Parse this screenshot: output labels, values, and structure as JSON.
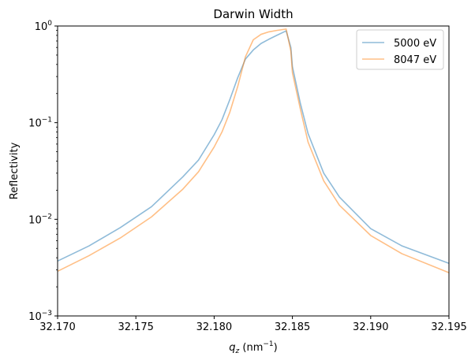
{
  "chart_data": {
    "type": "line",
    "title": "Darwin Width",
    "xlabel": "q_z (nm⁻¹)",
    "xlabel_parts": {
      "var": "q",
      "sub": "z",
      "unit_open": " (nm",
      "unit_sup": "−1",
      "unit_close": ")"
    },
    "ylabel": "Reflectivity",
    "xlim": [
      32.17,
      32.195
    ],
    "ylim": [
      0.001,
      1
    ],
    "yscale": "log",
    "grid": false,
    "legend_position": "top-right",
    "x_ticks": [
      "32.170",
      "32.175",
      "32.180",
      "32.185",
      "32.190",
      "32.195"
    ],
    "x_tick_values": [
      32.17,
      32.175,
      32.18,
      32.185,
      32.19,
      32.195
    ],
    "y_ticks": [
      {
        "value": 0.001,
        "base": "10",
        "exp": "−3"
      },
      {
        "value": 0.01,
        "base": "10",
        "exp": "−2"
      },
      {
        "value": 0.1,
        "base": "10",
        "exp": "−1"
      },
      {
        "value": 1,
        "base": "10",
        "exp": "0"
      }
    ],
    "series": [
      {
        "name": "5000 eV",
        "color": "#1f77b4",
        "opacity": 0.5,
        "x": [
          32.17,
          32.172,
          32.174,
          32.176,
          32.178,
          32.179,
          32.18,
          32.1805,
          32.181,
          32.1815,
          32.182,
          32.1825,
          32.183,
          32.1835,
          32.184,
          32.1846,
          32.1849,
          32.185,
          32.1855,
          32.186,
          32.187,
          32.188,
          32.19,
          32.192,
          32.195
        ],
        "y": [
          0.0037,
          0.0053,
          0.0082,
          0.0135,
          0.0275,
          0.041,
          0.075,
          0.107,
          0.173,
          0.29,
          0.455,
          0.565,
          0.66,
          0.73,
          0.8,
          0.89,
          0.6,
          0.38,
          0.16,
          0.077,
          0.03,
          0.017,
          0.008,
          0.0053,
          0.0035
        ]
      },
      {
        "name": "8047 eV",
        "color": "#ff7f0e",
        "opacity": 0.5,
        "x": [
          32.17,
          32.172,
          32.174,
          32.176,
          32.178,
          32.179,
          32.18,
          32.1805,
          32.181,
          32.1815,
          32.182,
          32.1825,
          32.183,
          32.1835,
          32.184,
          32.1846,
          32.1849,
          32.185,
          32.1855,
          32.186,
          32.187,
          32.188,
          32.19,
          32.192,
          32.195
        ],
        "y": [
          0.0029,
          0.0042,
          0.0064,
          0.0106,
          0.0205,
          0.031,
          0.056,
          0.08,
          0.128,
          0.235,
          0.48,
          0.72,
          0.82,
          0.87,
          0.9,
          0.93,
          0.55,
          0.33,
          0.14,
          0.063,
          0.025,
          0.014,
          0.0068,
          0.0044,
          0.0028
        ]
      }
    ]
  }
}
